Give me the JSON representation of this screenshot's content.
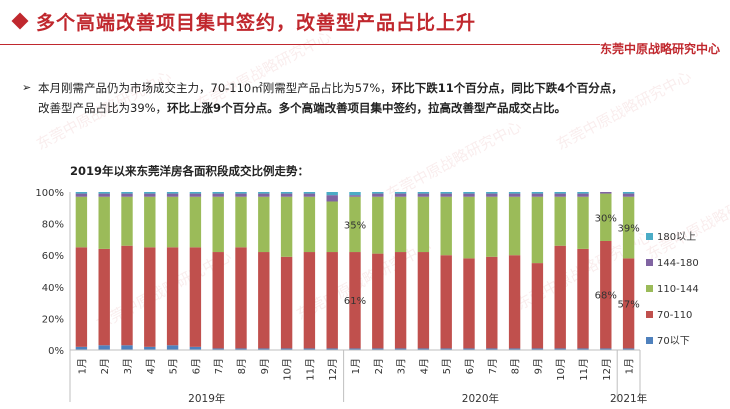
{
  "header": {
    "title": "多个高端改善项目集中签约，改善型产品占比上升",
    "brand": "东莞中原战略研究中心"
  },
  "summary": {
    "bullet": "➢",
    "line1_normal": "本月刚需产品仍为市场成交主力，70-110㎡刚需型产品占比为57%，",
    "line1_bold": "环比下跌11个百分点，同比下跌4个百分点，",
    "line2_normal": "改善型产品占比为39%，",
    "line2_bold": "环比上涨9个百分点。多个高端改善项目集中签约，拉高改善型产品成交占比。"
  },
  "watermark": "东莞中原战略研究中心",
  "chart_data": {
    "type": "bar",
    "stacked": true,
    "title": "2019年以来东莞洋房各面积段成交比例走势：",
    "categories": [
      "1月",
      "2月",
      "3月",
      "4月",
      "5月",
      "6月",
      "7月",
      "8月",
      "9月",
      "10月",
      "11月",
      "12月",
      "1月",
      "2月",
      "3月",
      "4月",
      "5月",
      "6月",
      "7月",
      "8月",
      "9月",
      "10月",
      "11月",
      "12月",
      "1月"
    ],
    "year_groups": [
      {
        "label": "2019年",
        "count": 12
      },
      {
        "label": "2020年",
        "count": 12
      },
      {
        "label": "2021年",
        "count": 1
      }
    ],
    "ylim": [
      0,
      100
    ],
    "yticks": [
      "0%",
      "20%",
      "40%",
      "60%",
      "80%",
      "100%"
    ],
    "series": [
      {
        "name": "70以下",
        "color": "#4f81bd",
        "values": [
          2,
          3,
          3,
          2,
          3,
          2,
          1,
          1,
          1,
          1,
          1,
          1,
          1,
          1,
          1,
          1,
          1,
          1,
          1,
          1,
          1,
          1,
          1,
          1,
          1
        ]
      },
      {
        "name": "70-110",
        "color": "#c0504d",
        "values": [
          63,
          61,
          63,
          63,
          62,
          63,
          61,
          64,
          61,
          58,
          61,
          61,
          61,
          60,
          61,
          61,
          59,
          57,
          58,
          59,
          54,
          65,
          63,
          68,
          57
        ]
      },
      {
        "name": "110-144",
        "color": "#9bbb59",
        "values": [
          32,
          33,
          31,
          32,
          32,
          32,
          35,
          32,
          35,
          38,
          35,
          32,
          35,
          36,
          35,
          35,
          37,
          39,
          38,
          37,
          42,
          31,
          33,
          30,
          39
        ]
      },
      {
        "name": "144-180",
        "color": "#8064a2",
        "values": [
          2,
          2,
          2,
          2,
          2,
          2,
          2,
          2,
          2,
          2,
          2,
          4,
          1,
          2,
          2,
          2,
          2,
          2,
          2,
          2,
          2,
          2,
          2,
          1,
          2
        ]
      },
      {
        "name": "180以上",
        "color": "#4bacc6",
        "values": [
          1,
          1,
          1,
          1,
          1,
          1,
          1,
          1,
          1,
          1,
          1,
          2,
          2,
          1,
          1,
          1,
          1,
          1,
          1,
          1,
          1,
          1,
          1,
          0,
          1
        ]
      }
    ],
    "data_labels": [
      {
        "text": "35%",
        "index": 12,
        "series": "110-144"
      },
      {
        "text": "61%",
        "index": 12,
        "series": "70-110"
      },
      {
        "text": "30%",
        "index": 23,
        "series": "110-144"
      },
      {
        "text": "68%",
        "index": 23,
        "series": "70-110"
      },
      {
        "text": "39%",
        "index": 24,
        "series": "110-144"
      },
      {
        "text": "57%",
        "index": 24,
        "series": "70-110"
      }
    ],
    "legend": {
      "position": "right",
      "order": [
        "180以上",
        "144-180",
        "110-144",
        "70-110",
        "70以下"
      ]
    },
    "grid": false
  }
}
